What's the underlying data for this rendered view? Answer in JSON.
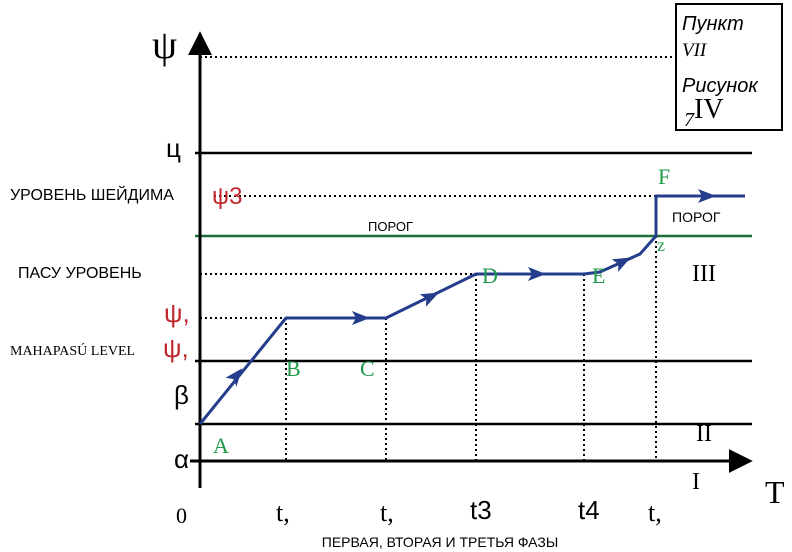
{
  "axes": {
    "y_label": "ψ",
    "x_label": "T",
    "origin_label": "0"
  },
  "x_ticks": [
    "t,",
    "t,",
    "t3",
    "t4",
    "t,"
  ],
  "caption": "ПЕРВАЯ, ВТОРАЯ И ТРЕТЬЯ ФАЗЫ",
  "box": {
    "line1": "Пункт",
    "line2": "VII",
    "line3": "Рисунок",
    "line4": "7",
    "line5": "IV"
  },
  "left_labels": {
    "c": "ц",
    "shadim": "УРОВЕНЬ ШЕЙДИМА",
    "psi3": "ψ3",
    "pasu": "ПАСУ УРОВЕНЬ",
    "psi1": "ψ,",
    "mahapasu": "MAHAPASÚ LEVEL",
    "psi2": "ψ,",
    "beta": "β",
    "alpha": "α"
  },
  "threshold_labels": {
    "center": "ПОРОГ",
    "right": "ПОРОГ"
  },
  "point_labels": [
    "A",
    "B",
    "C",
    "D",
    "E",
    "F",
    "z"
  ],
  "region_labels": [
    "I",
    "II",
    "III"
  ],
  "colors": {
    "axis": "#000000",
    "path": "#243e8c",
    "threshold": "#1f6b38",
    "point_label": "#1e9a4a",
    "psi_red": "#c0282e"
  }
}
